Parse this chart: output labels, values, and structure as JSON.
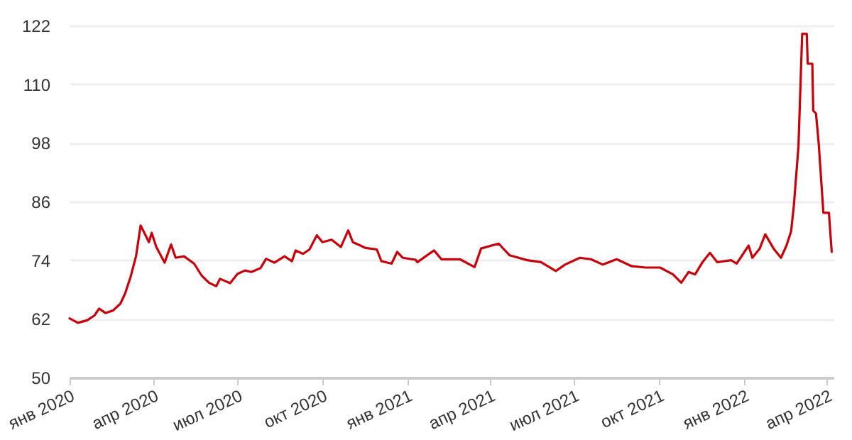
{
  "chart_data": {
    "type": "line",
    "x": [
      "2020-01-01",
      "2020-01-10",
      "2020-01-20",
      "2020-01-28",
      "2020-02-02",
      "2020-02-09",
      "2020-02-17",
      "2020-02-25",
      "2020-03-01",
      "2020-03-07",
      "2020-03-13",
      "2020-03-18",
      "2020-03-22",
      "2020-03-27",
      "2020-03-30",
      "2020-04-04",
      "2020-04-13",
      "2020-04-20",
      "2020-04-25",
      "2020-05-04",
      "2020-05-15",
      "2020-05-23",
      "2020-05-31",
      "2020-06-08",
      "2020-06-12",
      "2020-06-23",
      "2020-07-01",
      "2020-07-09",
      "2020-07-16",
      "2020-07-26",
      "2020-08-01",
      "2020-08-10",
      "2020-08-21",
      "2020-08-29",
      "2020-09-02",
      "2020-09-10",
      "2020-09-17",
      "2020-09-25",
      "2020-10-01",
      "2020-10-11",
      "2020-10-21",
      "2020-10-29",
      "2020-11-03",
      "2020-11-17",
      "2020-11-29",
      "2020-12-04",
      "2020-12-15",
      "2020-12-21",
      "2020-12-27",
      "2021-01-10",
      "2021-01-12",
      "2021-01-30",
      "2021-02-07",
      "2021-02-27",
      "2021-03-15",
      "2021-03-22",
      "2021-04-10",
      "2021-04-22",
      "2021-05-11",
      "2021-05-26",
      "2021-06-11",
      "2021-06-21",
      "2021-07-07",
      "2021-07-19",
      "2021-08-01",
      "2021-08-16",
      "2021-09-01",
      "2021-09-16",
      "2021-10-02",
      "2021-10-16",
      "2021-10-25",
      "2021-11-02",
      "2021-11-09",
      "2021-11-17",
      "2021-11-25",
      "2021-12-03",
      "2021-12-18",
      "2021-12-24",
      "2022-01-06",
      "2022-01-10",
      "2022-01-18",
      "2022-01-24",
      "2022-02-02",
      "2022-02-10",
      "2022-02-16",
      "2022-02-21",
      "2022-02-24",
      "2022-03-01",
      "2022-03-05",
      "2022-03-10",
      "2022-03-11",
      "2022-03-16",
      "2022-03-17",
      "2022-03-20",
      "2022-03-23",
      "2022-03-28",
      "2022-04-03",
      "2022-04-06"
    ],
    "series": [
      {
        "color": "#c8000a",
        "values": [
          62.1,
          61.2,
          61.7,
          62.7,
          64.1,
          63.2,
          63.7,
          65.1,
          67.1,
          70.5,
          74.8,
          81.1,
          79.6,
          77.7,
          79.6,
          76.7,
          73.5,
          77.2,
          74.5,
          74.8,
          73.3,
          70.9,
          69.4,
          68.7,
          70.2,
          69.3,
          71.2,
          71.9,
          71.6,
          72.4,
          74.3,
          73.5,
          74.8,
          73.8,
          76.0,
          75.3,
          76.2,
          79.1,
          77.7,
          78.2,
          76.7,
          80.1,
          77.7,
          76.5,
          76.2,
          73.8,
          73.3,
          75.7,
          74.5,
          74.1,
          73.6,
          76.0,
          74.2,
          74.2,
          72.6,
          76.4,
          77.4,
          75.0,
          74.0,
          73.6,
          71.8,
          73.1,
          74.5,
          74.2,
          73.1,
          74.2,
          72.8,
          72.5,
          72.5,
          71.1,
          69.4,
          71.6,
          71.1,
          73.6,
          75.5,
          73.6,
          74.0,
          73.3,
          77.0,
          74.5,
          76.4,
          79.3,
          76.4,
          74.5,
          77.0,
          79.9,
          85.2,
          97.3,
          120.3,
          120.3,
          114.2,
          114.2,
          104.6,
          104.0,
          97.7,
          83.7,
          83.7,
          75.7
        ]
      }
    ],
    "xlim": [
      "2020-01-01",
      "2022-04-08"
    ],
    "xticks": [
      {
        "value": "2020-01-01",
        "label": "янв 2020"
      },
      {
        "value": "2020-04-01",
        "label": "апр 2020"
      },
      {
        "value": "2020-07-01",
        "label": "июл 2020"
      },
      {
        "value": "2020-10-01",
        "label": "окт 2020"
      },
      {
        "value": "2021-01-01",
        "label": "янв 2021"
      },
      {
        "value": "2021-04-01",
        "label": "апр 2021"
      },
      {
        "value": "2021-07-01",
        "label": "июл 2021"
      },
      {
        "value": "2021-10-01",
        "label": "окт 2021"
      },
      {
        "value": "2022-01-01",
        "label": "янв 2022"
      },
      {
        "value": "2022-04-01",
        "label": "апр 2022"
      }
    ],
    "ylim": [
      50,
      122
    ],
    "yticks": [
      50,
      62,
      74,
      86,
      98,
      110,
      122
    ],
    "grid": "y"
  }
}
